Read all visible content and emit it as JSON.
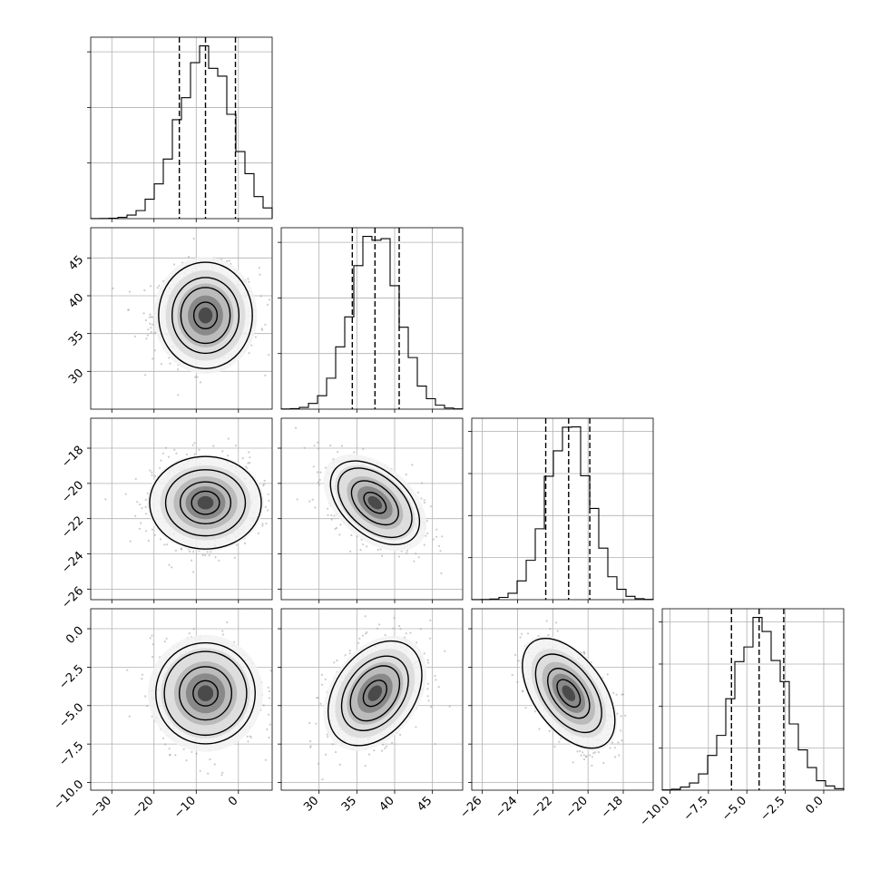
{
  "chart_data": {
    "type": "corner",
    "title": "",
    "n_params": 4,
    "params": [
      {
        "label": "",
        "range": [
          -35,
          8
        ],
        "ticks": [
          -30,
          -20,
          -10,
          0
        ],
        "tick_labels": [
          "−30",
          "−20",
          "−10",
          "0"
        ],
        "median": -7.8,
        "q16": -14.0,
        "q84": -0.7,
        "sigma": 6.3,
        "y_ticks_hist": 3
      },
      {
        "label": "",
        "range": [
          25,
          49
        ],
        "ticks": [
          30,
          35,
          40,
          45
        ],
        "tick_labels": [
          "30",
          "35",
          "40",
          "45"
        ],
        "median": 37.4,
        "q16": 34.4,
        "q84": 40.6,
        "sigma": 3.1,
        "y_ticks_hist": 3
      },
      {
        "label": "",
        "range": [
          -26.6,
          -16.3
        ],
        "ticks": [
          -26,
          -24,
          -22,
          -20,
          -18
        ],
        "tick_labels": [
          "−26",
          "−24",
          "−22",
          "−20",
          "−18"
        ],
        "median": -21.1,
        "q16": -22.4,
        "q84": -19.9,
        "sigma": 1.25,
        "y_ticks_hist": 4
      },
      {
        "label": "",
        "range": [
          -10.5,
          1.3
        ],
        "ticks": [
          -10.0,
          -7.5,
          -5.0,
          -2.5,
          0.0
        ],
        "tick_labels": [
          "−10.0",
          "−7.5",
          "−5.0",
          "−2.5",
          "0.0"
        ],
        "median": -4.2,
        "q16": -6.0,
        "q84": -2.6,
        "sigma": 1.7,
        "y_ticks_hist": 4
      }
    ],
    "correlations": [
      [
        1,
        0,
        0,
        0
      ],
      [
        0,
        1,
        -0.45,
        0.35
      ],
      [
        0,
        -0.45,
        1,
        -0.5
      ],
      [
        0,
        0.35,
        -0.5,
        1
      ]
    ],
    "histogram": {
      "bins": 20,
      "style": "step"
    },
    "contour_levels_sigma": [
      0.5,
      1.0,
      1.5,
      2.0
    ],
    "grid": true,
    "scatter_color": "#9a9a9a",
    "line_color": "#000000"
  }
}
